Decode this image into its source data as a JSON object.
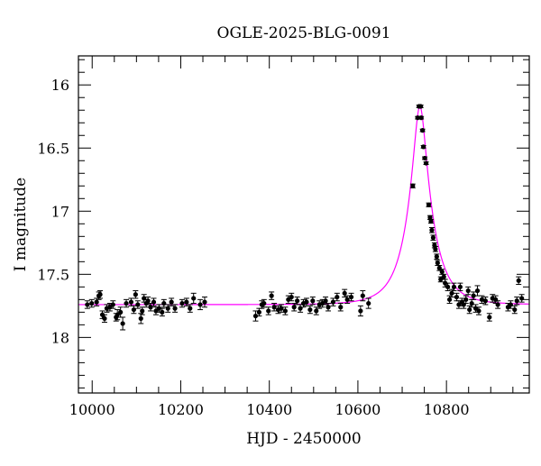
{
  "chart_data": {
    "type": "scatter",
    "title": "OGLE-2025-BLG-0091",
    "xlabel": "HJD - 2450000",
    "ylabel": "I magnitude",
    "xlim": [
      9969,
      10987
    ],
    "ylim": [
      18.44,
      15.77
    ],
    "y_inverted": true,
    "grid": false,
    "x_ticks": [
      10000,
      10200,
      10400,
      10600,
      10800
    ],
    "x_tick_labels": [
      "10000",
      "10200",
      "10400",
      "10600",
      "10800"
    ],
    "y_ticks": [
      16,
      16.5,
      17,
      17.5,
      18
    ],
    "y_tick_labels": [
      "16",
      "16.5",
      "17",
      "17.5",
      "18"
    ],
    "colors": {
      "points": "#000000",
      "model": "#ff00ff"
    },
    "series": [
      {
        "kind": "points_with_errorbars",
        "columns": [
          "hjd",
          "mag",
          "err"
        ],
        "points": [
          [
            9989,
            17.74,
            0.03
          ],
          [
            9999,
            17.73,
            0.03
          ],
          [
            10010,
            17.72,
            0.03
          ],
          [
            10015,
            17.67,
            0.03
          ],
          [
            10018,
            17.66,
            0.03
          ],
          [
            10023,
            17.82,
            0.03
          ],
          [
            10028,
            17.85,
            0.03
          ],
          [
            10033,
            17.77,
            0.03
          ],
          [
            10040,
            17.76,
            0.03
          ],
          [
            10047,
            17.74,
            0.03
          ],
          [
            10054,
            17.84,
            0.03
          ],
          [
            10057,
            17.82,
            0.04
          ],
          [
            10064,
            17.8,
            0.04
          ],
          [
            10069,
            17.89,
            0.05
          ],
          [
            10077,
            17.73,
            0.03
          ],
          [
            10088,
            17.72,
            0.03
          ],
          [
            10094,
            17.78,
            0.03
          ],
          [
            10098,
            17.66,
            0.03
          ],
          [
            10103,
            17.74,
            0.03
          ],
          [
            10110,
            17.85,
            0.04
          ],
          [
            10113,
            17.79,
            0.03
          ],
          [
            10117,
            17.69,
            0.03
          ],
          [
            10122,
            17.73,
            0.03
          ],
          [
            10126,
            17.71,
            0.03
          ],
          [
            10132,
            17.76,
            0.03
          ],
          [
            10139,
            17.72,
            0.03
          ],
          [
            10144,
            17.79,
            0.03
          ],
          [
            10151,
            17.77,
            0.03
          ],
          [
            10158,
            17.8,
            0.03
          ],
          [
            10162,
            17.73,
            0.03
          ],
          [
            10171,
            17.77,
            0.03
          ],
          [
            10179,
            17.72,
            0.03
          ],
          [
            10187,
            17.77,
            0.03
          ],
          [
            10203,
            17.73,
            0.03
          ],
          [
            10213,
            17.72,
            0.03
          ],
          [
            10221,
            17.77,
            0.03
          ],
          [
            10229,
            17.69,
            0.04
          ],
          [
            10244,
            17.74,
            0.04
          ],
          [
            10254,
            17.72,
            0.04
          ],
          [
            10369,
            17.83,
            0.04
          ],
          [
            10377,
            17.8,
            0.03
          ],
          [
            10383,
            17.74,
            0.03
          ],
          [
            10388,
            17.73,
            0.03
          ],
          [
            10398,
            17.79,
            0.03
          ],
          [
            10405,
            17.67,
            0.03
          ],
          [
            10411,
            17.76,
            0.03
          ],
          [
            10420,
            17.78,
            0.03
          ],
          [
            10427,
            17.77,
            0.03
          ],
          [
            10436,
            17.79,
            0.03
          ],
          [
            10443,
            17.7,
            0.03
          ],
          [
            10450,
            17.68,
            0.03
          ],
          [
            10456,
            17.76,
            0.03
          ],
          [
            10463,
            17.71,
            0.03
          ],
          [
            10470,
            17.77,
            0.03
          ],
          [
            10477,
            17.73,
            0.03
          ],
          [
            10484,
            17.72,
            0.03
          ],
          [
            10492,
            17.78,
            0.03
          ],
          [
            10498,
            17.71,
            0.03
          ],
          [
            10506,
            17.79,
            0.03
          ],
          [
            10513,
            17.74,
            0.03
          ],
          [
            10520,
            17.73,
            0.03
          ],
          [
            10527,
            17.71,
            0.03
          ],
          [
            10533,
            17.76,
            0.03
          ],
          [
            10544,
            17.72,
            0.03
          ],
          [
            10553,
            17.68,
            0.03
          ],
          [
            10561,
            17.76,
            0.03
          ],
          [
            10570,
            17.65,
            0.03
          ],
          [
            10576,
            17.7,
            0.03
          ],
          [
            10585,
            17.68,
            0.03
          ],
          [
            10606,
            17.79,
            0.04
          ],
          [
            10611,
            17.67,
            0.04
          ],
          [
            10624,
            17.73,
            0.04
          ],
          [
            10724,
            16.8,
            0.015
          ],
          [
            10735,
            16.26,
            0.01
          ],
          [
            10738,
            16.17,
            0.01
          ],
          [
            10742,
            16.17,
            0.01
          ],
          [
            10743,
            16.26,
            0.01
          ],
          [
            10746,
            16.36,
            0.01
          ],
          [
            10748,
            16.49,
            0.01
          ],
          [
            10751,
            16.58,
            0.01
          ],
          [
            10754,
            16.62,
            0.01
          ],
          [
            10760,
            16.95,
            0.015
          ],
          [
            10763,
            17.05,
            0.015
          ],
          [
            10765,
            17.08,
            0.015
          ],
          [
            10767,
            17.15,
            0.02
          ],
          [
            10770,
            17.21,
            0.02
          ],
          [
            10773,
            17.27,
            0.02
          ],
          [
            10775,
            17.3,
            0.02
          ],
          [
            10778,
            17.36,
            0.02
          ],
          [
            10780,
            17.41,
            0.02
          ],
          [
            10784,
            17.45,
            0.02
          ],
          [
            10787,
            17.54,
            0.02
          ],
          [
            10790,
            17.48,
            0.02
          ],
          [
            10794,
            17.52,
            0.02
          ],
          [
            10797,
            17.57,
            0.03
          ],
          [
            10803,
            17.6,
            0.03
          ],
          [
            10807,
            17.7,
            0.03
          ],
          [
            10812,
            17.65,
            0.03
          ],
          [
            10817,
            17.6,
            0.03
          ],
          [
            10823,
            17.68,
            0.03
          ],
          [
            10828,
            17.74,
            0.03
          ],
          [
            10831,
            17.6,
            0.03
          ],
          [
            10835,
            17.72,
            0.03
          ],
          [
            10839,
            17.74,
            0.03
          ],
          [
            10844,
            17.7,
            0.03
          ],
          [
            10849,
            17.63,
            0.03
          ],
          [
            10852,
            17.78,
            0.03
          ],
          [
            10857,
            17.73,
            0.03
          ],
          [
            10861,
            17.67,
            0.03
          ],
          [
            10866,
            17.77,
            0.03
          ],
          [
            10870,
            17.63,
            0.04
          ],
          [
            10873,
            17.79,
            0.03
          ],
          [
            10880,
            17.7,
            0.03
          ],
          [
            10888,
            17.71,
            0.03
          ],
          [
            10897,
            17.84,
            0.03
          ],
          [
            10904,
            17.69,
            0.03
          ],
          [
            10911,
            17.7,
            0.03
          ],
          [
            10916,
            17.74,
            0.03
          ],
          [
            10939,
            17.76,
            0.03
          ],
          [
            10945,
            17.74,
            0.03
          ],
          [
            10954,
            17.78,
            0.03
          ],
          [
            10959,
            17.71,
            0.03
          ],
          [
            10963,
            17.55,
            0.03
          ],
          [
            10970,
            17.69,
            0.03
          ]
        ]
      },
      {
        "kind": "model_curve",
        "baseline_mag": 17.74,
        "peak_hjd": 10740,
        "peak_mag": 16.17
      }
    ]
  }
}
